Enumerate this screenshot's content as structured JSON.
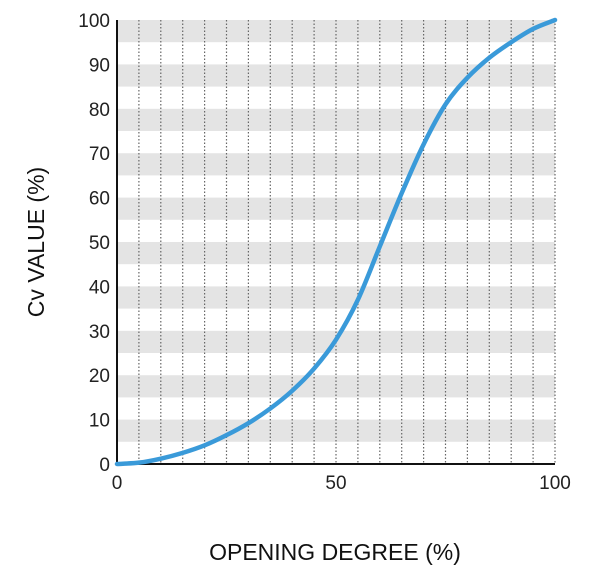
{
  "chart_data": {
    "type": "line",
    "title": "",
    "xlabel": "OPENING DEGREE (%)",
    "ylabel": "Cv VALUE (%)",
    "xlim": [
      0,
      100
    ],
    "ylim": [
      0,
      100
    ],
    "x_tick_labels": [
      "0",
      "50",
      "100"
    ],
    "y_tick_labels": [
      "0",
      "10",
      "20",
      "30",
      "40",
      "50",
      "60",
      "70",
      "80",
      "90",
      "100"
    ],
    "x_gridline_step": 5,
    "y_band_step": 5,
    "grid": true,
    "legend": "none",
    "series": [
      {
        "color": "#3a9ad9",
        "x": [
          0,
          5,
          10,
          15,
          20,
          25,
          30,
          35,
          40,
          45,
          50,
          55,
          60,
          65,
          70,
          75,
          80,
          85,
          90,
          95,
          100
        ],
        "y": [
          0,
          0.3,
          1.2,
          2.5,
          4.2,
          6.5,
          9.2,
          12.5,
          16.5,
          21.5,
          28,
          37,
          49,
          61,
          72,
          81,
          87,
          91.5,
          95,
          98,
          100
        ]
      }
    ],
    "colors": {
      "band": "#e4e4e4",
      "gridline": "#666666",
      "axis": "#111111"
    }
  }
}
